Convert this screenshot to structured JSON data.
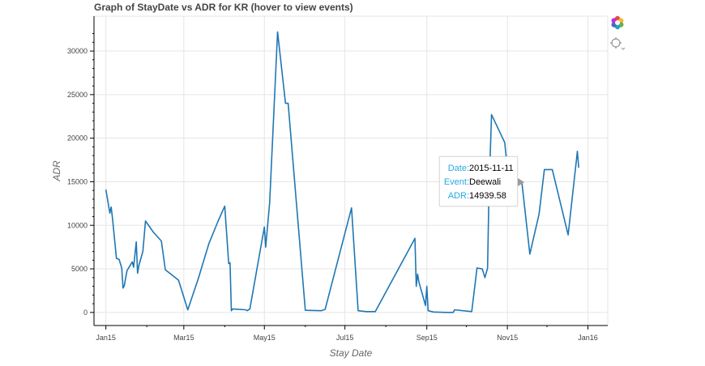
{
  "chart_data": {
    "type": "line",
    "title": "Graph of StayDate vs ADR for KR (hover to view events)",
    "xlabel": "Stay Date",
    "ylabel": "ADR",
    "x_tick_labels": [
      "Jan15",
      "Mar15",
      "May15",
      "Jul15",
      "Sep15",
      "Nov15",
      "Jan16"
    ],
    "x_tick_dates": [
      "2015-01-01",
      "2015-03-01",
      "2015-05-01",
      "2015-07-01",
      "2015-09-01",
      "2015-11-01",
      "2016-01-01"
    ],
    "y_ticks": [
      0,
      5000,
      10000,
      15000,
      20000,
      25000,
      30000
    ],
    "xlim": [
      "2014-12-23",
      "2016-01-16"
    ],
    "ylim": [
      -1500,
      34000
    ],
    "grid": true,
    "line_color": "#1f77b4",
    "series": [
      {
        "x": [
          "2015-01-01",
          "2015-01-04",
          "2015-01-05",
          "2015-01-06",
          "2015-01-09",
          "2015-01-11",
          "2015-01-13",
          "2015-01-14",
          "2015-01-15",
          "2015-01-16",
          "2015-01-17",
          "2015-01-21",
          "2015-01-22",
          "2015-01-24",
          "2015-01-25",
          "2015-01-26",
          "2015-01-29",
          "2015-01-31",
          "2015-02-06",
          "2015-02-12",
          "2015-02-15",
          "2015-02-25",
          "2015-03-04",
          "2015-03-12",
          "2015-03-20",
          "2015-03-27",
          "2015-04-01",
          "2015-04-04",
          "2015-04-05",
          "2015-04-06",
          "2015-04-07",
          "2015-04-17",
          "2015-04-18",
          "2015-04-20",
          "2015-05-01",
          "2015-05-02",
          "2015-05-05",
          "2015-05-11",
          "2015-05-17",
          "2015-05-19",
          "2015-06-01",
          "2015-06-13",
          "2015-06-16",
          "2015-07-06",
          "2015-07-11",
          "2015-07-17",
          "2015-07-24",
          "2015-08-23",
          "2015-08-24",
          "2015-08-25",
          "2015-08-26",
          "2015-08-31",
          "2015-09-01",
          "2015-09-02",
          "2015-09-06",
          "2015-09-15",
          "2015-09-21",
          "2015-09-22",
          "2015-10-05",
          "2015-10-09",
          "2015-10-13",
          "2015-10-15",
          "2015-10-17",
          "2015-10-18",
          "2015-10-20",
          "2015-10-30",
          "2015-11-01",
          "2015-11-11",
          "2015-11-12",
          "2015-11-18",
          "2015-11-25",
          "2015-11-29",
          "2015-12-05",
          "2015-12-17",
          "2015-12-24",
          "2015-12-25"
        ],
        "y": [
          14100,
          11400,
          12100,
          10800,
          6200,
          6100,
          5100,
          2800,
          3100,
          4000,
          4800,
          5800,
          5200,
          8100,
          4500,
          5400,
          7000,
          10500,
          9200,
          8200,
          4900,
          3700,
          300,
          3900,
          7900,
          10500,
          12200,
          5600,
          5700,
          200,
          400,
          300,
          200,
          400,
          9800,
          7500,
          12600,
          32200,
          24000,
          24000,
          250,
          200,
          350,
          12000,
          200,
          100,
          100,
          8500,
          3000,
          4400,
          3500,
          800,
          3000,
          200,
          50,
          0,
          0,
          300,
          100,
          5100,
          5000,
          4000,
          5100,
          13400,
          22700,
          19500,
          16500,
          14939.58,
          14900,
          6700,
          11300,
          16400,
          16400,
          8900,
          18500,
          16600
        ]
      }
    ]
  },
  "tooltip": {
    "date_label": "Date:",
    "date_value": "2015-11-11",
    "event_label": "Event:",
    "event_value": "Deewali",
    "adr_label": "ADR:",
    "adr_value": "14939.58"
  },
  "toolbar": {
    "items": [
      "bokeh-logo-icon",
      "hover-tool-icon"
    ]
  }
}
